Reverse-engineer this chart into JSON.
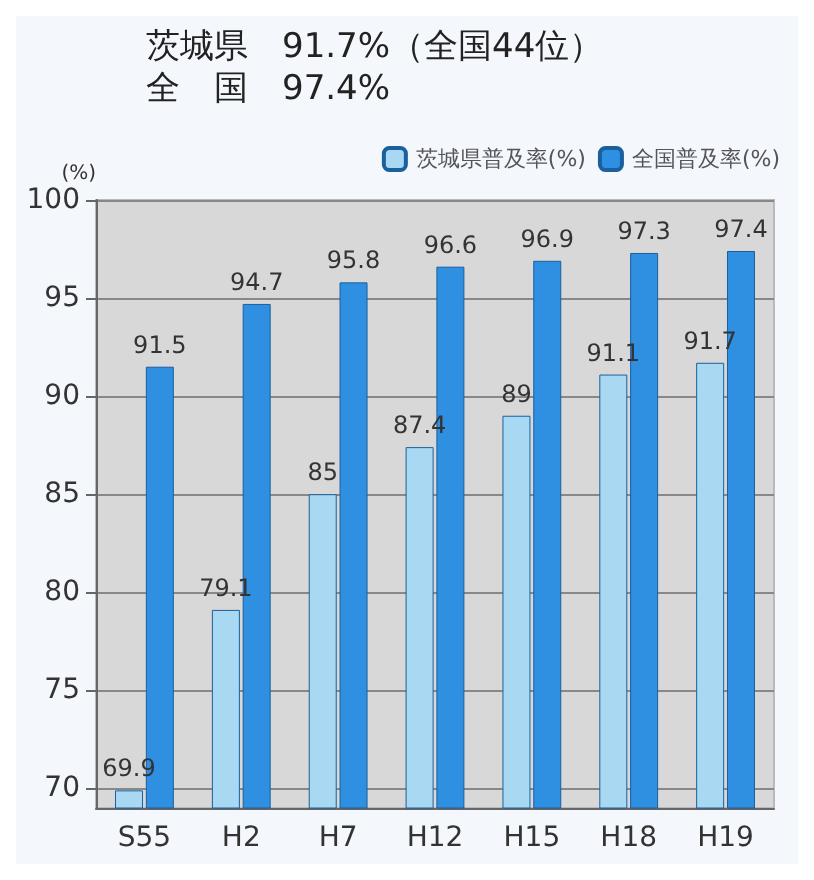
{
  "chart_data": {
    "type": "bar",
    "title": "茨城県　91.7%（全国44位）",
    "subtitle": "全　国　97.4%",
    "ylabel": "(%)",
    "categories": [
      "S55",
      "H2",
      "H7",
      "H12",
      "H15",
      "H18",
      "H19"
    ],
    "series": [
      {
        "name": "茨城県普及率(%)",
        "color": "#a9d9f2",
        "values": [
          69.9,
          79.1,
          85,
          87.4,
          89,
          91.1,
          91.7
        ]
      },
      {
        "name": "全国普及率(%)",
        "color": "#2f8fe0",
        "values": [
          91.5,
          94.7,
          95.8,
          96.6,
          96.9,
          97.3,
          97.4
        ]
      }
    ],
    "ylim": [
      69,
      100
    ],
    "yticks": [
      70,
      75,
      80,
      85,
      90,
      95,
      100
    ],
    "grid": "y",
    "legend": "top right",
    "data_labels": true
  }
}
